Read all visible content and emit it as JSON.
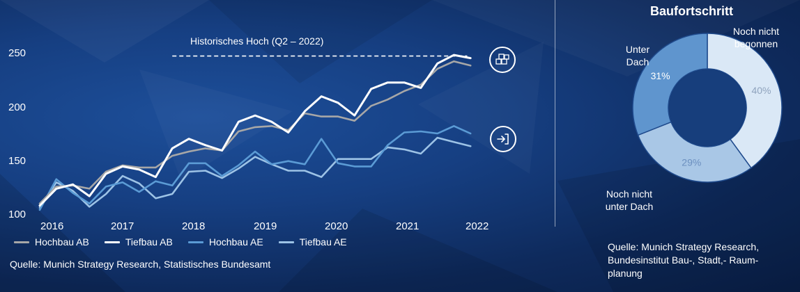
{
  "chart_data": [
    {
      "type": "line",
      "title": "",
      "xlabel": "",
      "ylabel": "",
      "x_ticks": [
        "2016",
        "2017",
        "2018",
        "2019",
        "2020",
        "2021",
        "2022"
      ],
      "y_ticks": [
        "250",
        "200",
        "150",
        "100"
      ],
      "ylim": [
        100,
        250
      ],
      "xlim": [
        2015.75,
        2022.5
      ],
      "grid": false,
      "legend_position": "bottom",
      "annotation": {
        "label": "Historisches Hoch (Q2 – 2022)",
        "y": 247,
        "x_start": 2017.75,
        "x_end": 2022.2
      },
      "x": [
        2015.75,
        2016,
        2016.25,
        2016.5,
        2016.75,
        2017,
        2017.25,
        2017.5,
        2017.75,
        2018,
        2018.25,
        2018.5,
        2018.75,
        2019,
        2019.25,
        2019.5,
        2019.75,
        2020,
        2020.25,
        2020.5,
        2020.75,
        2021,
        2021.25,
        2021.5,
        2021.75,
        2022,
        2022.25
      ],
      "series": [
        {
          "name": "Hochbau AB",
          "color": "#a7a7a7",
          "values": [
            108,
            124,
            125,
            122,
            138,
            144,
            142,
            142,
            153,
            157,
            160,
            158,
            176,
            180,
            181,
            177,
            193,
            190,
            190,
            186,
            200,
            206,
            214,
            220,
            235,
            242,
            238
          ]
        },
        {
          "name": "Tiefbau AB",
          "color": "#ffffff",
          "values": [
            106,
            122,
            126,
            115,
            136,
            143,
            140,
            133,
            160,
            169,
            163,
            158,
            185,
            191,
            185,
            175,
            195,
            209,
            203,
            191,
            216,
            222,
            222,
            217,
            240,
            248,
            245
          ]
        },
        {
          "name": "Hochbau AE",
          "color": "#5b9bd5",
          "values": [
            102,
            131,
            118,
            108,
            124,
            128,
            119,
            129,
            125,
            146,
            146,
            134,
            144,
            157,
            145,
            148,
            145,
            169,
            146,
            143,
            143,
            163,
            175,
            176,
            174,
            181,
            174
          ]
        },
        {
          "name": "Tiefbau AE",
          "color": "#9dc3e6",
          "values": [
            104,
            128,
            120,
            105,
            117,
            134,
            127,
            113,
            117,
            138,
            139,
            132,
            141,
            152,
            145,
            139,
            139,
            133,
            150,
            150,
            150,
            161,
            159,
            155,
            170,
            166,
            162
          ]
        }
      ]
    },
    {
      "type": "pie",
      "title": "Baufortschritt",
      "values": [
        40,
        29,
        31
      ],
      "labels": [
        "Noch nicht begonnen",
        "Noch nicht unter Dach",
        "Unter Dach"
      ],
      "value_labels": [
        "40%",
        "29%",
        "31%"
      ],
      "colors": [
        "#dae8f6",
        "#a9c7e6",
        "#5f95ce"
      ],
      "hole_color": "#173e7c",
      "legend_position": "none"
    }
  ],
  "donut": {
    "category_labels": {
      "begonnen_line1": "Noch nicht",
      "begonnen_line2": "begonnen",
      "unter_dach_line1": "Unter",
      "unter_dach_line2": "Dach",
      "nicht_unter_dach_line1": "Noch nicht",
      "nicht_unter_dach_line2": "unter Dach"
    },
    "source_lines": [
      "Quelle: Munich Strategy Research,",
      "Bundesinstitut Bau-, Stadt,- Raum-",
      "planung"
    ]
  },
  "footer": {
    "source_left": "Quelle: Munich Strategy Research, Statistisches Bundesamt"
  },
  "icons": {
    "high_marker": "boxes-icon",
    "entry_marker": "enter-arrow-icon"
  }
}
